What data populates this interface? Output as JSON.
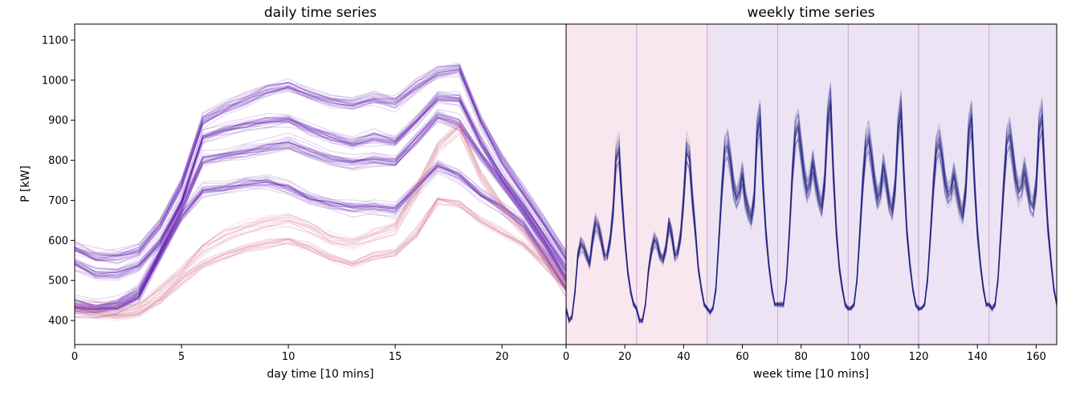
{
  "chart_data": [
    {
      "type": "line",
      "title": "daily time series",
      "xlabel": "day time [10 mins]",
      "ylabel": "P [kW]",
      "xlim": [
        0,
        23
      ],
      "ylim": [
        340,
        1140
      ],
      "x_ticks": [
        0,
        5,
        10,
        15,
        20
      ],
      "y_ticks": [
        400,
        500,
        600,
        700,
        800,
        900,
        1000,
        1100
      ],
      "grid": false,
      "colors": {
        "weekday": "#5b0fae",
        "weekend": "#d56a85"
      },
      "x": [
        0,
        1,
        2,
        3,
        4,
        5,
        6,
        7,
        8,
        9,
        10,
        11,
        12,
        13,
        14,
        15,
        16,
        17,
        18,
        19,
        20,
        21,
        22,
        23
      ],
      "series": [
        {
          "group": "weekday",
          "values": [
            430,
            425,
            432,
            460,
            560,
            660,
            725,
            730,
            740,
            745,
            730,
            705,
            690,
            680,
            682,
            675,
            730,
            785,
            760,
            715,
            680,
            640,
            560,
            480
          ]
        },
        {
          "group": "weekday",
          "values": [
            440,
            430,
            440,
            470,
            570,
            680,
            800,
            810,
            820,
            830,
            840,
            820,
            800,
            790,
            800,
            795,
            850,
            910,
            890,
            810,
            740,
            670,
            590,
            500
          ]
        },
        {
          "group": "weekday",
          "values": [
            545,
            520,
            520,
            540,
            600,
            700,
            860,
            880,
            890,
            900,
            905,
            880,
            860,
            845,
            860,
            850,
            900,
            960,
            955,
            850,
            760,
            690,
            610,
            530
          ]
        },
        {
          "group": "weekday",
          "values": [
            580,
            560,
            560,
            575,
            640,
            740,
            900,
            930,
            950,
            975,
            985,
            965,
            950,
            940,
            955,
            945,
            985,
            1020,
            1030,
            900,
            800,
            720,
            640,
            560
          ]
        },
        {
          "group": "weekend",
          "values": [
            420,
            415,
            410,
            420,
            450,
            500,
            540,
            560,
            580,
            590,
            600,
            580,
            555,
            540,
            560,
            570,
            620,
            700,
            690,
            650,
            620,
            590,
            540,
            480
          ]
        },
        {
          "group": "weekend",
          "values": [
            440,
            430,
            425,
            430,
            470,
            520,
            580,
            610,
            630,
            640,
            650,
            630,
            600,
            590,
            610,
            630,
            720,
            830,
            880,
            760,
            680,
            620,
            560,
            490
          ]
        }
      ]
    },
    {
      "type": "line",
      "title": "weekly time series",
      "xlabel": "week time [10 mins]",
      "ylabel": "",
      "xlim": [
        0,
        167
      ],
      "ylim": [
        340,
        1140
      ],
      "x_ticks": [
        0,
        20,
        40,
        60,
        80,
        100,
        120,
        140,
        160
      ],
      "day_boundaries": [
        24,
        48,
        72,
        96,
        120,
        144
      ],
      "weekend_span": [
        0,
        48
      ],
      "weekday_span": [
        48,
        167
      ],
      "grid": false,
      "colors": {
        "series": "#262683",
        "weekend_band": "#f9e7ef",
        "weekday_band": "#ece4f4",
        "boundary": "#c9a3d8"
      },
      "daily_profiles": [
        {
          "day": 1,
          "group": "weekend",
          "values": [
            430,
            400,
            410,
            470,
            560,
            590,
            580,
            560,
            540,
            600,
            640,
            630,
            600,
            560,
            560,
            600,
            670,
            800,
            820,
            700,
            600,
            520,
            470,
            440
          ]
        },
        {
          "day": 2,
          "group": "weekend",
          "values": [
            430,
            400,
            400,
            440,
            520,
            570,
            600,
            590,
            560,
            550,
            580,
            640,
            610,
            560,
            570,
            610,
            700,
            820,
            800,
            700,
            620,
            530,
            480,
            440
          ]
        },
        {
          "day": 3,
          "group": "weekday",
          "values": [
            430,
            420,
            430,
            480,
            600,
            720,
            820,
            830,
            790,
            730,
            700,
            720,
            760,
            700,
            670,
            650,
            700,
            860,
            900,
            740,
            620,
            540,
            480,
            440
          ]
        },
        {
          "day": 4,
          "group": "weekday",
          "values": [
            440,
            440,
            440,
            500,
            620,
            760,
            860,
            880,
            820,
            760,
            720,
            740,
            790,
            740,
            700,
            680,
            740,
            890,
            940,
            760,
            620,
            530,
            480,
            440
          ]
        },
        {
          "day": 5,
          "group": "weekday",
          "values": [
            430,
            430,
            440,
            500,
            620,
            740,
            830,
            850,
            800,
            740,
            700,
            720,
            780,
            740,
            690,
            670,
            730,
            870,
            920,
            760,
            620,
            540,
            480,
            440
          ]
        },
        {
          "day": 6,
          "group": "weekday",
          "values": [
            430,
            430,
            440,
            500,
            610,
            730,
            820,
            840,
            800,
            740,
            710,
            720,
            760,
            720,
            680,
            660,
            720,
            860,
            900,
            740,
            620,
            540,
            480,
            440
          ]
        },
        {
          "day": 7,
          "group": "weekday",
          "values": [
            440,
            430,
            440,
            500,
            620,
            740,
            840,
            860,
            810,
            750,
            720,
            730,
            770,
            730,
            690,
            680,
            730,
            870,
            900,
            750,
            630,
            550,
            480,
            440
          ]
        }
      ]
    }
  ]
}
